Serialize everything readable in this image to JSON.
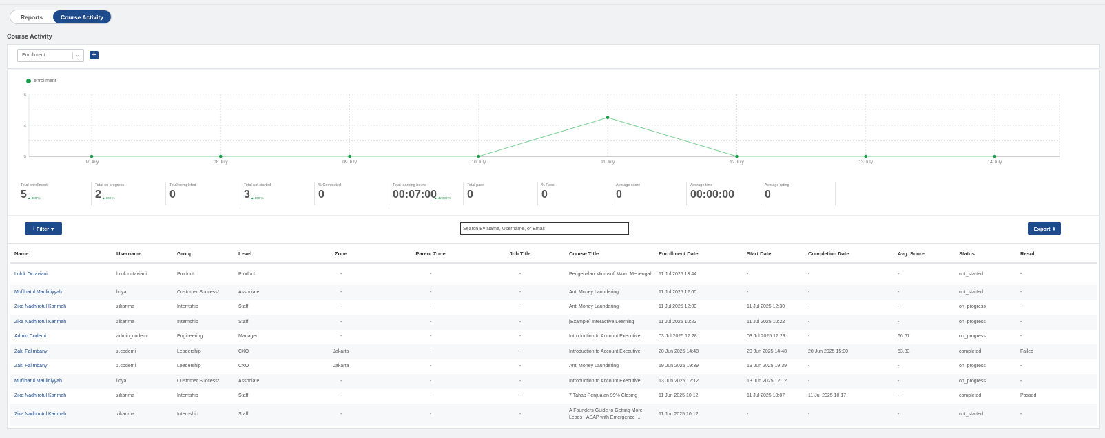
{
  "tabs": {
    "reports": "Reports",
    "course_activity": "Course Activity"
  },
  "section_title": "Course Activity",
  "metric_select": {
    "value": "Enrollment",
    "chevron": "⌄"
  },
  "add_button": "+",
  "legend_label": "enrollment",
  "chart_data": {
    "type": "line",
    "categories": [
      "07 July",
      "08 July",
      "09 July",
      "10 July",
      "11 July",
      "12 July",
      "13 July",
      "14 July"
    ],
    "series": [
      {
        "name": "enrollment",
        "values": [
          0,
          0,
          0,
          0,
          5,
          0,
          0,
          0
        ]
      }
    ],
    "y_ticks": [
      "0",
      "4",
      "8"
    ],
    "ylim": [
      0,
      8
    ],
    "grid": true,
    "legend_position": "top-left",
    "color": "#1a9c4a"
  },
  "stats": [
    {
      "label": "Total enrollment",
      "value": "5",
      "change": "400 %"
    },
    {
      "label": "Total on progress",
      "value": "2",
      "change": "100 %"
    },
    {
      "label": "Total completed",
      "value": "0",
      "change": ""
    },
    {
      "label": "Total not started",
      "value": "3",
      "change": "300 %"
    },
    {
      "label": "% Completed",
      "value": "0",
      "change": ""
    },
    {
      "label": "Total learning hours",
      "value": "00:07:00",
      "change": "42,000 %"
    },
    {
      "label": "Total pass",
      "value": "0",
      "change": ""
    },
    {
      "label": "% Pass",
      "value": "0",
      "change": ""
    },
    {
      "label": "Average score",
      "value": "0",
      "change": ""
    },
    {
      "label": "Average time",
      "value": "00:00:00",
      "change": ""
    },
    {
      "label": "Average rating",
      "value": "0",
      "change": ""
    }
  ],
  "filter_label": "Filter",
  "search_placeholder": "Search By Name, Username, or Email",
  "export_label": "Export",
  "table": {
    "columns": [
      "Name",
      "Username",
      "Group",
      "Level",
      "Zone",
      "Parent Zone",
      "Job Title",
      "Course Title",
      "Enrollment Date",
      "Start Date",
      "Completion Date",
      "Avg. Score",
      "Status",
      "Result"
    ],
    "rows": [
      [
        "Luluk Octaviani",
        "luluk.octaviani",
        "Product",
        "Product",
        "-",
        "-",
        "-",
        "Pengenalan Microsoft Word Menengah",
        "11 Jul 2025 13:44",
        "-",
        "-",
        "-",
        "not_started",
        "-"
      ],
      [
        "Mufilhatul Maulidiyyah",
        "lidya",
        "Customer Success*",
        "Associate",
        "-",
        "-",
        "-",
        "Anti Money Laundering",
        "11 Jul 2025 12:00",
        "-",
        "-",
        "-",
        "not_started",
        "-"
      ],
      [
        "Zika Nadhirotul Karimah",
        "zikarima",
        "Internship",
        "Staff",
        "-",
        "-",
        "-",
        "Anti Money Laundering",
        "11 Jul 2025 12:00",
        "11 Jul 2025 12:30",
        "-",
        "-",
        "on_progress",
        "-"
      ],
      [
        "Zika Nadhirotul Karimah",
        "zikarima",
        "Internship",
        "Staff",
        "-",
        "-",
        "-",
        "[Example] Interactive Learning",
        "11 Jul 2025 10:22",
        "11 Jul 2025 10:22",
        "-",
        "-",
        "on_progress",
        "-"
      ],
      [
        "Admin Codemi",
        "admin_codemi",
        "Engineering",
        "Manager",
        "-",
        "-",
        "-",
        "Introduction to Account Executive",
        "03 Jul 2025 17:28",
        "03 Jul 2025 17:29",
        "-",
        "66.67",
        "on_progress",
        "-"
      ],
      [
        "Zaki Falimbany",
        "z.codemi",
        "Leadership",
        "CXO",
        "Jakarta",
        "-",
        "-",
        "Introduction to Account Executive",
        "20 Jun 2025 14:48",
        "20 Jun 2025 14:48",
        "20 Jun 2025 15:00",
        "53.33",
        "completed",
        "Failed"
      ],
      [
        "Zaki Falimbany",
        "z.codemi",
        "Leadership",
        "CXO",
        "Jakarta",
        "-",
        "-",
        "Anti Money Laundering",
        "19 Jun 2025 19:39",
        "19 Jun 2025 19:39",
        "-",
        "-",
        "on_progress",
        "-"
      ],
      [
        "Mufilhatul Maulidiyyah",
        "lidya",
        "Customer Success*",
        "Associate",
        "-",
        "-",
        "-",
        "Introduction to Account Executive",
        "13 Jun 2025 12:12",
        "13 Jun 2025 12:12",
        "-",
        "-",
        "on_progress",
        "-"
      ],
      [
        "Zika Nadhirotul Karimah",
        "zikarima",
        "Internship",
        "Staff",
        "-",
        "-",
        "-",
        "7 Tahap Penjualan 99% Closing",
        "11 Jun 2025 10:12",
        "11 Jul 2025 10:07",
        "11 Jul 2025 10:17",
        "-",
        "completed",
        "Passed"
      ],
      [
        "Zika Nadhirotul Karimah",
        "zikarima",
        "Internship",
        "Staff",
        "-",
        "-",
        "-",
        "A Founders Guide to Getting More Leads - ASAP with Emergence ...",
        "11 Jun 2025 10:12",
        "-",
        "-",
        "-",
        "not_started",
        "-"
      ]
    ]
  }
}
